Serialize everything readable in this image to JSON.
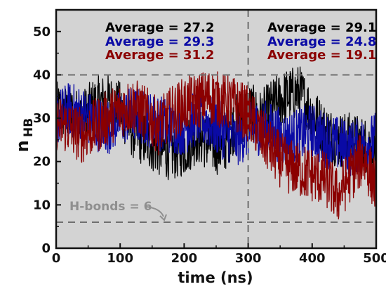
{
  "chart_data": {
    "type": "line",
    "xlabel": "time (ns)",
    "ylabel_main": "n",
    "ylabel_sub": "HB",
    "xlim": [
      0,
      500
    ],
    "ylim": [
      0,
      55
    ],
    "x_ticks": [
      "0",
      "100",
      "200",
      "300",
      "400",
      "500"
    ],
    "y_ticks": [
      "0",
      "10",
      "20",
      "30",
      "40",
      "50"
    ],
    "grid": false,
    "background": "#d3d3d3",
    "reference_lines": {
      "horizontal": [
        40,
        6
      ],
      "vertical": [
        300
      ],
      "color": "#6f6f6f",
      "style": "dashed"
    },
    "annotation": {
      "text": "H-bonds = 6",
      "points_to": [
        175,
        6
      ]
    },
    "averages": {
      "left": {
        "series1": "Average = 27.2",
        "series2": "Average = 29.3",
        "series3": "Average = 31.2"
      },
      "right": {
        "series1": "Average = 29.1",
        "series2": "Average = 24.8",
        "series3": "Average = 19.1"
      }
    },
    "series": [
      {
        "color": "#000000",
        "x": [
          0,
          20,
          40,
          60,
          80,
          100,
          120,
          140,
          160,
          180,
          200,
          220,
          240,
          260,
          280,
          300,
          320,
          340,
          360,
          380,
          400,
          420,
          440,
          460,
          480,
          500
        ],
        "values": [
          32,
          31,
          30,
          33,
          34,
          32,
          27,
          25,
          23,
          22,
          23,
          26,
          24,
          23,
          29,
          32,
          30,
          33,
          35,
          36,
          31,
          27,
          25,
          25,
          24,
          23
        ]
      },
      {
        "color": "#0a0aa5",
        "x": [
          0,
          20,
          40,
          60,
          80,
          100,
          120,
          140,
          160,
          180,
          200,
          220,
          240,
          260,
          280,
          300,
          320,
          340,
          360,
          380,
          400,
          420,
          440,
          460,
          480,
          500
        ],
        "values": [
          30,
          32,
          31,
          29,
          28,
          30,
          31,
          30,
          29,
          28,
          28,
          30,
          29,
          27,
          25,
          27,
          28,
          27,
          25,
          26,
          27,
          25,
          24,
          23,
          24,
          25
        ]
      },
      {
        "color": "#8b0000",
        "x": [
          0,
          20,
          40,
          60,
          80,
          100,
          120,
          140,
          160,
          180,
          200,
          220,
          240,
          260,
          280,
          300,
          320,
          340,
          360,
          380,
          400,
          420,
          440,
          460,
          480,
          500
        ],
        "values": [
          29,
          28,
          26,
          28,
          30,
          32,
          33,
          31,
          28,
          31,
          33,
          34,
          35,
          34,
          33,
          31,
          26,
          22,
          19,
          18,
          17,
          16,
          12,
          17,
          21,
          14
        ]
      }
    ]
  }
}
